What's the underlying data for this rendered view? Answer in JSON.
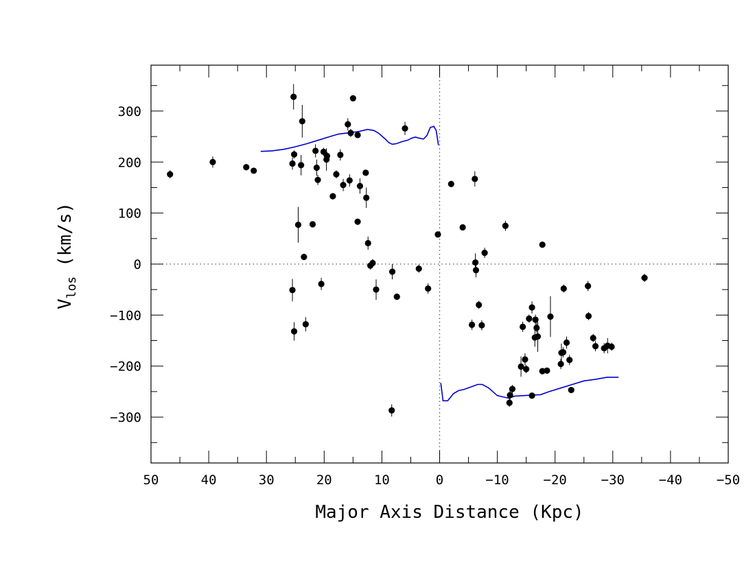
{
  "chart_data": {
    "type": "scatter",
    "xlabel": "Major Axis Distance (Kpc)",
    "ylabel": "V",
    "ylabel_sub": "los",
    "ylabel_units": "(km/s)",
    "xlim": [
      50,
      -50
    ],
    "ylim": [
      -390,
      390
    ],
    "x_ticks": [
      50,
      40,
      30,
      20,
      10,
      0,
      -10,
      -20,
      -30,
      -40,
      -50
    ],
    "x_tick_labels": [
      "50",
      "40",
      "30",
      "20",
      "10",
      "0",
      "−10",
      "−20",
      "−30",
      "−40",
      "−50"
    ],
    "y_ticks": [
      300,
      200,
      100,
      0,
      -100,
      -200,
      -300
    ],
    "y_tick_labels": [
      "300",
      "200",
      "100",
      "0",
      "−100",
      "−200",
      "−300"
    ],
    "grid": false,
    "colors": {
      "points": "#000000",
      "model_curve": "#0000cc",
      "reference_lines": "#555555"
    },
    "reference_lines": {
      "x": 0,
      "y": 0,
      "style": "dotted"
    },
    "points": [
      {
        "x": 46.7,
        "y": 176,
        "err": 8
      },
      {
        "x": 39.3,
        "y": 200,
        "err": 11
      },
      {
        "x": 33.5,
        "y": 190,
        "err": 6
      },
      {
        "x": 32.2,
        "y": 183,
        "err": 5
      },
      {
        "x": 25.3,
        "y": 328,
        "err": 25
      },
      {
        "x": 23.8,
        "y": 280,
        "err": 32
      },
      {
        "x": 25.2,
        "y": 215,
        "err": 8
      },
      {
        "x": 25.5,
        "y": 197,
        "err": 12
      },
      {
        "x": 24.0,
        "y": 194,
        "err": 20
      },
      {
        "x": 24.5,
        "y": 77,
        "err": 35
      },
      {
        "x": 23.5,
        "y": 14,
        "err": 6
      },
      {
        "x": 25.5,
        "y": -51,
        "err": 22
      },
      {
        "x": 25.2,
        "y": -132,
        "err": 18
      },
      {
        "x": 23.2,
        "y": -118,
        "err": 14
      },
      {
        "x": 21.5,
        "y": 222,
        "err": 13
      },
      {
        "x": 21.3,
        "y": 189,
        "err": 16
      },
      {
        "x": 21.1,
        "y": 165,
        "err": 10
      },
      {
        "x": 20.1,
        "y": 220,
        "err": 8
      },
      {
        "x": 19.5,
        "y": 212,
        "err": 8
      },
      {
        "x": 19.6,
        "y": 205,
        "err": 22
      },
      {
        "x": 22.0,
        "y": 78,
        "err": 5
      },
      {
        "x": 20.5,
        "y": -39,
        "err": 12
      },
      {
        "x": 18.5,
        "y": 133,
        "err": 6
      },
      {
        "x": 17.9,
        "y": 176,
        "err": 8
      },
      {
        "x": 17.2,
        "y": 214,
        "err": 11
      },
      {
        "x": 16.7,
        "y": 155,
        "err": 12
      },
      {
        "x": 15.9,
        "y": 274,
        "err": 12
      },
      {
        "x": 15.6,
        "y": 164,
        "err": 12
      },
      {
        "x": 15.4,
        "y": 257,
        "err": 8
      },
      {
        "x": 15.0,
        "y": 325,
        "err": 5
      },
      {
        "x": 14.2,
        "y": 253,
        "err": 6
      },
      {
        "x": 13.8,
        "y": 153,
        "err": 15
      },
      {
        "x": 14.2,
        "y": 83,
        "err": 5
      },
      {
        "x": 12.8,
        "y": 179,
        "err": 6
      },
      {
        "x": 12.7,
        "y": 130,
        "err": 20
      },
      {
        "x": 12.4,
        "y": 41,
        "err": 13
      },
      {
        "x": 12.0,
        "y": -3,
        "err": 8
      },
      {
        "x": 11.6,
        "y": 2,
        "err": 8
      },
      {
        "x": 11.0,
        "y": -50,
        "err": 20
      },
      {
        "x": 8.2,
        "y": -15,
        "err": 15
      },
      {
        "x": 7.4,
        "y": -64,
        "err": 6
      },
      {
        "x": 8.3,
        "y": -287,
        "err": 12
      },
      {
        "x": 6.0,
        "y": 266,
        "err": 13
      },
      {
        "x": 3.6,
        "y": -9,
        "err": 8
      },
      {
        "x": 2.0,
        "y": -48,
        "err": 10
      },
      {
        "x": 0.3,
        "y": 58,
        "err": 6
      },
      {
        "x": -2.0,
        "y": 157,
        "err": 6
      },
      {
        "x": -4.0,
        "y": 72,
        "err": 5
      },
      {
        "x": -5.6,
        "y": -119,
        "err": 10
      },
      {
        "x": -6.1,
        "y": 167,
        "err": 15
      },
      {
        "x": -6.2,
        "y": 3,
        "err": 18
      },
      {
        "x": -6.3,
        "y": -12,
        "err": 14
      },
      {
        "x": -6.8,
        "y": -80,
        "err": 8
      },
      {
        "x": -7.3,
        "y": -120,
        "err": 10
      },
      {
        "x": -7.8,
        "y": 22,
        "err": 10
      },
      {
        "x": -11.4,
        "y": 75,
        "err": 10
      },
      {
        "x": -12.1,
        "y": -272,
        "err": 8
      },
      {
        "x": -12.2,
        "y": -257,
        "err": 10
      },
      {
        "x": -12.6,
        "y": -245,
        "err": 8
      },
      {
        "x": -14.1,
        "y": -201,
        "err": 20
      },
      {
        "x": -14.4,
        "y": -123,
        "err": 10
      },
      {
        "x": -14.8,
        "y": -187,
        "err": 12
      },
      {
        "x": -15.0,
        "y": -206,
        "err": 8
      },
      {
        "x": -15.5,
        "y": -107,
        "err": 8
      },
      {
        "x": -16.0,
        "y": -258,
        "err": 6
      },
      {
        "x": -16.0,
        "y": -85,
        "err": 12
      },
      {
        "x": -16.5,
        "y": -144,
        "err": 18
      },
      {
        "x": -16.6,
        "y": -109,
        "err": 10
      },
      {
        "x": -16.8,
        "y": -125,
        "err": 10
      },
      {
        "x": -17.0,
        "y": -142,
        "err": 30
      },
      {
        "x": -17.8,
        "y": 38,
        "err": 5
      },
      {
        "x": -17.8,
        "y": -210,
        "err": 6
      },
      {
        "x": -18.6,
        "y": -209,
        "err": 6
      },
      {
        "x": -19.2,
        "y": -103,
        "err": 40
      },
      {
        "x": -21.0,
        "y": -196,
        "err": 10
      },
      {
        "x": -21.1,
        "y": -174,
        "err": 18
      },
      {
        "x": -21.4,
        "y": -173,
        "err": 10
      },
      {
        "x": -21.5,
        "y": -48,
        "err": 8
      },
      {
        "x": -22.0,
        "y": -154,
        "err": 12
      },
      {
        "x": -22.5,
        "y": -188,
        "err": 10
      },
      {
        "x": -22.8,
        "y": -247,
        "err": 6
      },
      {
        "x": -25.7,
        "y": -43,
        "err": 10
      },
      {
        "x": -25.8,
        "y": -102,
        "err": 8
      },
      {
        "x": -26.6,
        "y": -145,
        "err": 8
      },
      {
        "x": -27.0,
        "y": -161,
        "err": 10
      },
      {
        "x": -28.5,
        "y": -165,
        "err": 10
      },
      {
        "x": -29.1,
        "y": -160,
        "err": 15
      },
      {
        "x": -29.8,
        "y": -162,
        "err": 8
      },
      {
        "x": -35.5,
        "y": -27,
        "err": 8
      }
    ],
    "model_curves": [
      {
        "x": [
          31,
          29,
          27,
          25,
          23,
          21,
          19,
          17.5,
          16,
          14,
          12.5,
          11.4,
          10.5,
          9.5,
          8.8,
          8.2,
          7.5,
          6.5,
          5.5,
          4.8,
          4.2,
          3.6,
          2.8,
          2.2,
          1.6,
          1.2,
          1.0,
          0.6,
          0.2
        ],
        "y": [
          221,
          222,
          225,
          230,
          236,
          243,
          250,
          255,
          257,
          260,
          264,
          262,
          256,
          246,
          238,
          235,
          236,
          240,
          243,
          247,
          249,
          247,
          245,
          252,
          268,
          269,
          270,
          262,
          233
        ]
      },
      {
        "x": [
          -0.2,
          -0.6,
          -1.4,
          -2.4,
          -3.3,
          -4.2,
          -5.4,
          -6.6,
          -7.4,
          -8.5,
          -10,
          -12,
          -13,
          -14.5,
          -16,
          -17.5,
          -19,
          -21,
          -23,
          -25,
          -27,
          -29,
          -31
        ],
        "y": [
          -233,
          -268,
          -268,
          -254,
          -248,
          -246,
          -241,
          -236,
          -236,
          -243,
          -258,
          -263,
          -259,
          -258,
          -257,
          -256,
          -250,
          -243,
          -236,
          -229,
          -226,
          -222,
          -222
        ]
      }
    ]
  }
}
